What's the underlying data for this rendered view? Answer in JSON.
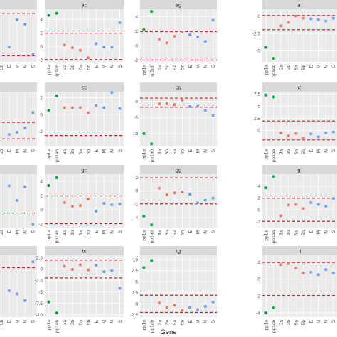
{
  "chart_data": {
    "type": "scatter",
    "xlabel": "Gene",
    "genes": [
      "pp1a",
      "pp1ab",
      "3a",
      "3b",
      "5a",
      "5b",
      "E",
      "M",
      "N",
      "S"
    ],
    "colors": {
      "pp1": "#00a63e",
      "accessory": "#f07c6e",
      "structural": "#6e9ff0",
      "threshold": "#d62020",
      "panel_bg": "#ebebeb",
      "strip_bg": "#d9d9d9",
      "grid": "#ffffff"
    },
    "threshold_style": "dashed",
    "grid": true,
    "panels": [
      {
        "title": "",
        "ylim": [
          -2.5,
          3.5
        ],
        "yticks": [],
        "thresholds": [
          3,
          -1.8
        ],
        "points": [
          [
            "E",
            -0.8
          ],
          [
            "M",
            2.3
          ],
          [
            "N",
            1.8
          ],
          [
            "S",
            -1.6
          ]
        ]
      },
      {
        "title": "ac",
        "ylim": [
          -2.3,
          5.5
        ],
        "yticks": [
          4,
          2,
          0,
          -2
        ],
        "thresholds": [
          1.95,
          -1.95
        ],
        "points": [
          [
            "pp1a",
            4.6
          ],
          [
            "pp1ab",
            4.9
          ],
          [
            "3a",
            0.2
          ],
          [
            "3b",
            -0.2
          ],
          [
            "5a",
            -0.6
          ],
          [
            "5b",
            -1.7
          ],
          [
            "E",
            0.4
          ],
          [
            "M",
            -0.1
          ],
          [
            "N",
            -0.1
          ],
          [
            "S",
            3.5
          ]
        ]
      },
      {
        "title": "ag",
        "ylim": [
          -2.2,
          5.0
        ],
        "yticks": [
          4,
          2,
          0,
          -2
        ],
        "thresholds": [
          1.95,
          -1.95
        ],
        "points": [
          [
            "pp1a",
            2.2
          ],
          [
            "pp1ab",
            4.7
          ],
          [
            "3a",
            0.9
          ],
          [
            "3b",
            0.4
          ],
          [
            "5a",
            1.3
          ],
          [
            "5b",
            1.9
          ],
          [
            "E",
            1.5
          ],
          [
            "M",
            1.2
          ],
          [
            "N",
            0.6
          ],
          [
            "S",
            3.5
          ]
        ]
      },
      {
        "title": "at",
        "ylim": [
          -6.6,
          1.0
        ],
        "yticks": [
          0.0,
          -2.5,
          -5.0
        ],
        "thresholds": [
          0.1,
          -1.95
        ],
        "points": [
          [
            "pp1a",
            -4.5
          ],
          [
            "pp1ab",
            -6.1
          ],
          [
            "3a",
            -1.4
          ],
          [
            "3b",
            -0.9
          ],
          [
            "5a",
            0.0
          ],
          [
            "5b",
            -0.3
          ],
          [
            "E",
            -0.4
          ],
          [
            "M",
            -0.5
          ],
          [
            "N",
            -0.7
          ],
          [
            "S",
            -0.3
          ]
        ]
      },
      {
        "title": "",
        "ylim": [
          -2.0,
          3.0
        ],
        "yticks": [],
        "thresholds": [
          0.2,
          -1.3
        ],
        "points": [
          [
            "E",
            -0.9
          ],
          [
            "M",
            -0.7
          ],
          [
            "N",
            -0.3
          ],
          [
            "S",
            1.1
          ]
        ]
      },
      {
        "title": "cc",
        "ylim": [
          -3.8,
          2.7
        ],
        "yticks": [
          2,
          0,
          -2
        ],
        "thresholds": [
          -2.5
        ],
        "points": [
          [
            "pp1a",
            0.5
          ],
          [
            "pp1ab",
            2.2
          ],
          [
            "3a",
            0.8
          ],
          [
            "3b",
            0.8
          ],
          [
            "5a",
            0.8
          ],
          [
            "5b",
            0.2
          ],
          [
            "E",
            1.1
          ],
          [
            "M",
            0.8
          ],
          [
            "N",
            2.6
          ],
          [
            "S",
            0.7
          ]
        ]
      },
      {
        "title": "cg",
        "ylim": [
          -14.0,
          3.0
        ],
        "yticks": [
          0,
          -5,
          -10
        ],
        "thresholds": [
          1.0,
          -1.8
        ],
        "points": [
          [
            "pp1a",
            -10.0
          ],
          [
            "pp1ab",
            -13.2
          ],
          [
            "3a",
            -0.8
          ],
          [
            "3b",
            -0.6
          ],
          [
            "5a",
            -1.0
          ],
          [
            "5b",
            0.4
          ],
          [
            "E",
            -1.6
          ],
          [
            "M",
            -1.3
          ],
          [
            "N",
            -2.8
          ],
          [
            "S",
            -4.4
          ]
        ]
      },
      {
        "title": "ct",
        "ylim": [
          -3.3,
          8.0
        ],
        "yticks": [
          7.5,
          5.0,
          2.5,
          0.0
        ],
        "thresholds": [
          1.95,
          -1.95
        ],
        "points": [
          [
            "pp1a",
            7.3
          ],
          [
            "pp1ab",
            6.9
          ],
          [
            "3a",
            -0.5
          ],
          [
            "3b",
            -1.1
          ],
          [
            "5a",
            -0.6
          ],
          [
            "5b",
            -1.6
          ],
          [
            "E",
            -0.7
          ],
          [
            "M",
            -1.3
          ],
          [
            "N",
            -0.5
          ],
          [
            "S",
            -0.3
          ]
        ]
      },
      {
        "title": "",
        "ylim": [
          -2.5,
          3.0
        ],
        "yticks": [],
        "thresholds": [
          -1.0
        ],
        "points": [
          [
            "E",
            1.8
          ],
          [
            "M",
            0.3
          ],
          [
            "N",
            1.7
          ],
          [
            "S",
            -2.2
          ]
        ]
      },
      {
        "title": "gc",
        "ylim": [
          -2.5,
          5.0
        ],
        "yticks": [
          4,
          2,
          0,
          -2
        ],
        "thresholds": [
          1.95,
          -1.95
        ],
        "points": [
          [
            "pp1a",
            3.4
          ],
          [
            "pp1ab",
            4.5
          ],
          [
            "3a",
            1.0
          ],
          [
            "3b",
            0.5
          ],
          [
            "5a",
            0.6
          ],
          [
            "5b",
            1.5
          ],
          [
            "E",
            -0.2
          ],
          [
            "M",
            0.9
          ],
          [
            "N",
            0.7
          ],
          [
            "S",
            0.8
          ]
        ]
      },
      {
        "title": "gg",
        "ylim": [
          -5.5,
          2.5
        ],
        "yticks": [
          2,
          0,
          -2,
          -4
        ],
        "thresholds": [
          1.95,
          -1.95
        ],
        "points": [
          [
            "pp1a",
            -3.8
          ],
          [
            "pp1ab",
            -5.1
          ],
          [
            "3a",
            0.4
          ],
          [
            "3b",
            -0.6
          ],
          [
            "5a",
            -0.3
          ],
          [
            "5b",
            -0.2
          ],
          [
            "E",
            -0.5
          ],
          [
            "M",
            -1.8
          ],
          [
            "N",
            -1.4
          ],
          [
            "S",
            -1.1
          ]
        ]
      },
      {
        "title": "gt",
        "ylim": [
          -3.0,
          6.0
        ],
        "yticks": [
          4,
          2,
          0,
          -2
        ],
        "thresholds": [
          1.95,
          -1.95
        ],
        "points": [
          [
            "pp1a",
            3.7
          ],
          [
            "pp1ab",
            5.6
          ],
          [
            "3a",
            -1.0
          ],
          [
            "3b",
            0.8
          ],
          [
            "5a",
            0.9
          ],
          [
            "5b",
            0.2
          ],
          [
            "E",
            1.2
          ],
          [
            "M",
            0.9
          ],
          [
            "N",
            0.6
          ],
          [
            "S",
            1.9
          ]
        ]
      },
      {
        "title": "",
        "ylim": [
          -4.0,
          3.5
        ],
        "yticks": [],
        "thresholds": [
          2.0
        ],
        "points": [
          [
            "E",
            -0.8
          ],
          [
            "M",
            -1.2
          ],
          [
            "N",
            -2.0
          ],
          [
            "S",
            2.7
          ]
        ]
      },
      {
        "title": "tc",
        "ylim": [
          -10.5,
          3.0
        ],
        "yticks": [
          2.5,
          0.0,
          -2.5,
          -5.0,
          -7.5,
          -10.0
        ],
        "thresholds": [
          1.95,
          -1.95
        ],
        "points": [
          [
            "pp1a",
            -7.2
          ],
          [
            "pp1ab",
            -9.6
          ],
          [
            "3a",
            0.6
          ],
          [
            "3b",
            -0.1
          ],
          [
            "5a",
            0.9
          ],
          [
            "5b",
            -0.2
          ],
          [
            "E",
            0.8
          ],
          [
            "M",
            -0.6
          ],
          [
            "N",
            -0.4
          ],
          [
            "S",
            -4.2
          ]
        ]
      },
      {
        "title": "tg",
        "ylim": [
          -3.0,
          11.0
        ],
        "yticks": [
          10.0,
          7.5,
          5.0,
          2.5,
          0.0,
          -2.5
        ],
        "thresholds": [
          1.95,
          -1.95
        ],
        "points": [
          [
            "pp1a",
            8.2
          ],
          [
            "pp1ab",
            9.8
          ],
          [
            "3a",
            0.2
          ],
          [
            "3b",
            -0.8
          ],
          [
            "5a",
            -0.3
          ],
          [
            "5b",
            -1.5
          ],
          [
            "E",
            -0.8
          ],
          [
            "M",
            -1.3
          ],
          [
            "N",
            -0.6
          ],
          [
            "S",
            0.4
          ]
        ]
      },
      {
        "title": "tt",
        "ylim": [
          -4.5,
          2.8
        ],
        "yticks": [
          2,
          0,
          -2,
          -4
        ],
        "thresholds": [
          1.95,
          -1.95
        ],
        "points": [
          [
            "pp1a",
            -4.0
          ],
          [
            "pp1ab",
            -3.4
          ],
          [
            "3a",
            1.7
          ],
          [
            "3b",
            1.8
          ],
          [
            "5a",
            1.3
          ],
          [
            "5b",
            0.7
          ],
          [
            "E",
            0.8
          ],
          [
            "M",
            0.5
          ],
          [
            "N",
            1.1
          ],
          [
            "S",
            0.7
          ]
        ]
      }
    ]
  }
}
